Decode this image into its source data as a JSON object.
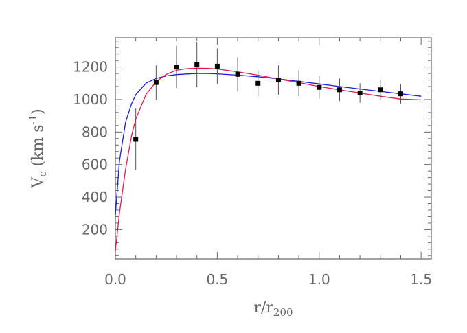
{
  "chart_data": {
    "type": "scatter",
    "xlabel": {
      "main": "r/r",
      "sub": "200"
    },
    "ylabel": {
      "main": "V",
      "sub": "c",
      "units_pre": " (km s",
      "units_sup": "-1",
      "units_post": ")"
    },
    "xlim": [
      0,
      1.55
    ],
    "ylim": [
      20,
      1380
    ],
    "x_ticks": [
      0.0,
      0.5,
      1.0,
      1.5
    ],
    "x_tick_labels": [
      "0.0",
      "0.5",
      "1.0",
      "1.5"
    ],
    "y_ticks": [
      200,
      400,
      600,
      800,
      1000,
      1200
    ],
    "y_tick_labels": [
      "200",
      "400",
      "600",
      "800",
      "1000",
      "1200"
    ],
    "grid": false,
    "points": {
      "x": [
        0.1,
        0.2,
        0.3,
        0.4,
        0.5,
        0.6,
        0.7,
        0.8,
        0.9,
        1.0,
        1.1,
        1.2,
        1.3,
        1.4
      ],
      "y": [
        755,
        1105,
        1200,
        1215,
        1205,
        1155,
        1100,
        1120,
        1100,
        1075,
        1060,
        1040,
        1060,
        1035
      ],
      "err": [
        190,
        105,
        130,
        140,
        110,
        105,
        80,
        90,
        80,
        70,
        70,
        60,
        60,
        60
      ],
      "color": "#000000"
    },
    "series": [
      {
        "color": "#1a1ae0",
        "x": [
          0.0,
          0.02,
          0.05,
          0.08,
          0.1,
          0.15,
          0.2,
          0.25,
          0.3,
          0.35,
          0.4,
          0.45,
          0.5,
          0.6,
          0.7,
          0.8,
          0.9,
          1.0,
          1.1,
          1.2,
          1.3,
          1.4,
          1.5
        ],
        "y": [
          290,
          620,
          860,
          975,
          1030,
          1100,
          1130,
          1145,
          1153,
          1157,
          1160,
          1160,
          1158,
          1150,
          1140,
          1127,
          1112,
          1096,
          1080,
          1065,
          1050,
          1035,
          1020
        ]
      },
      {
        "color": "#e01a4a",
        "x": [
          0.0,
          0.02,
          0.05,
          0.08,
          0.1,
          0.15,
          0.2,
          0.25,
          0.3,
          0.35,
          0.4,
          0.45,
          0.5,
          0.6,
          0.7,
          0.8,
          0.9,
          1.0,
          1.1,
          1.2,
          1.3,
          1.4,
          1.5
        ],
        "y": [
          70,
          300,
          570,
          780,
          880,
          1030,
          1110,
          1155,
          1180,
          1190,
          1193,
          1192,
          1188,
          1170,
          1150,
          1126,
          1104,
          1080,
          1060,
          1040,
          1020,
          1003,
          998
        ]
      }
    ]
  }
}
